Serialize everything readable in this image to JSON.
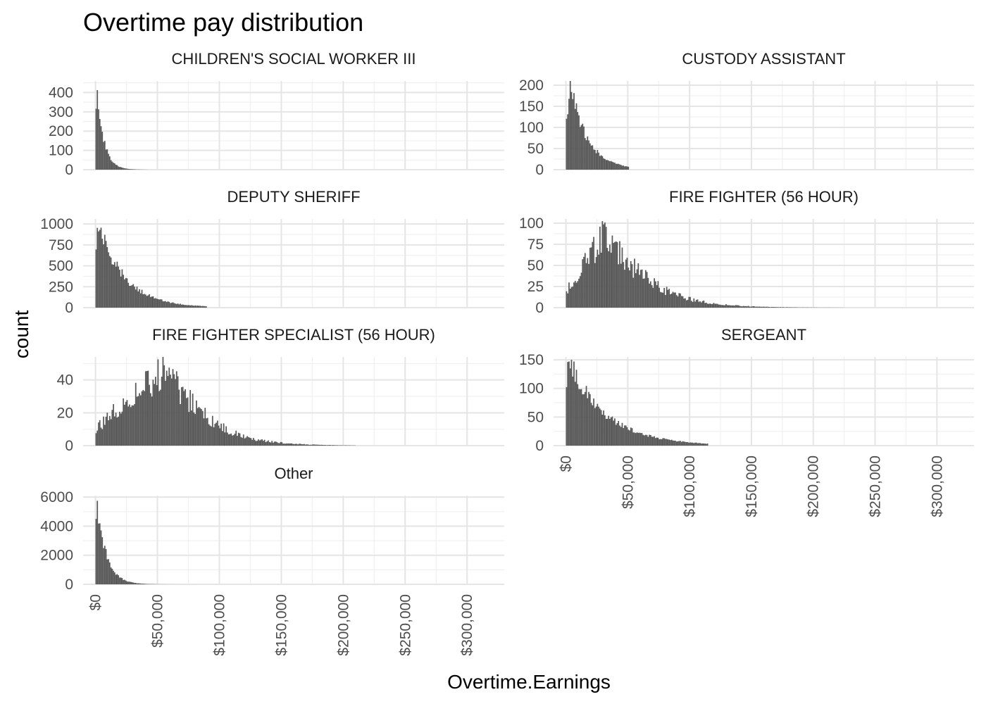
{
  "chart_data": {
    "type": "histogram",
    "title": "Overtime pay distribution",
    "xlabel": "Overtime.Earnings",
    "ylabel": "count",
    "x_range": [
      -10000,
      330000
    ],
    "x_ticks": [
      0,
      50000,
      100000,
      150000,
      200000,
      250000,
      300000
    ],
    "x_tick_labels": [
      "$0",
      "$50,000",
      "$100,000",
      "$150,000",
      "$200,000",
      "$250,000",
      "$300,000"
    ],
    "bin_width": 1000,
    "panels": [
      {
        "name": "CHILDREN'S SOCIAL WORKER III",
        "y_range": [
          0,
          460
        ],
        "y_ticks": [
          0,
          100,
          200,
          300,
          400
        ],
        "shape": "decay",
        "peak": 440,
        "peak_at": 1000,
        "start": 0,
        "end": 42000,
        "scale": 5500
      },
      {
        "name": "CUSTODY ASSISTANT",
        "y_range": [
          0,
          210
        ],
        "y_ticks": [
          0,
          50,
          100,
          150,
          200
        ],
        "shape": "decay",
        "peak": 200,
        "peak_at": 3500,
        "start": 0,
        "end": 51000,
        "scale": 14000
      },
      {
        "name": "DEPUTY SHERIFF",
        "y_range": [
          0,
          1060
        ],
        "y_ticks": [
          0,
          250,
          500,
          750,
          1000
        ],
        "shape": "decay",
        "peak": 1020,
        "peak_at": 2000,
        "start": 0,
        "end": 90000,
        "scale": 21000
      },
      {
        "name": "FIRE FIGHTER (56 HOUR)",
        "y_range": [
          0,
          105
        ],
        "y_ticks": [
          0,
          25,
          50,
          75,
          100
        ],
        "shape": "hump",
        "peak": 88,
        "mode": 32000,
        "start": 0,
        "end": 225000,
        "scale": 32000
      },
      {
        "name": "FIRE FIGHTER SPECIALIST (56 HOUR)",
        "y_range": [
          0,
          54
        ],
        "y_ticks": [
          0,
          20,
          40
        ],
        "shape": "hump",
        "peak": 46,
        "mode": 58000,
        "start": 0,
        "end": 210000,
        "scale": 30000
      },
      {
        "name": "SERGEANT",
        "y_range": [
          0,
          155
        ],
        "y_ticks": [
          0,
          50,
          100,
          150
        ],
        "shape": "decay",
        "peak": 150,
        "peak_at": 2000,
        "start": 0,
        "end": 115000,
        "scale": 30000
      },
      {
        "name": "Other",
        "y_range": [
          0,
          6100
        ],
        "y_ticks": [
          0,
          2000,
          4000,
          6000
        ],
        "shape": "decay",
        "peak": 5900,
        "peak_at": 1000,
        "start": 0,
        "end": 115000,
        "scale": 7500
      }
    ]
  }
}
